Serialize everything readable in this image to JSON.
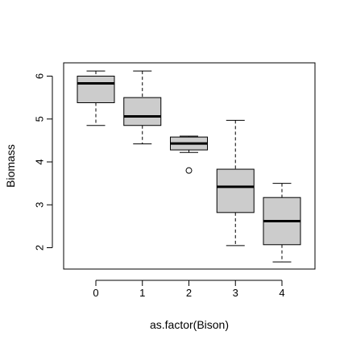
{
  "chart_data": {
    "type": "boxplot",
    "title": "",
    "xlabel": "as.factor(Bison)",
    "ylabel": "Biomass",
    "categories": [
      "0",
      "1",
      "2",
      "3",
      "4"
    ],
    "x_tick_labels": [
      "0",
      "1",
      "2",
      "3",
      "4"
    ],
    "y_ticks": [
      2,
      3,
      4,
      5,
      6
    ],
    "y_tick_labels": [
      "2",
      "3",
      "4",
      "5",
      "6"
    ],
    "ylim": [
      1.55,
      6.3
    ],
    "grid": false,
    "box_fill": "#cccccc",
    "boxes": [
      {
        "category": "0",
        "whisker_low": 4.85,
        "q1": 5.38,
        "median": 5.83,
        "q3": 6.0,
        "whisker_high": 6.12,
        "outliers": []
      },
      {
        "category": "1",
        "whisker_low": 4.42,
        "q1": 4.85,
        "median": 5.06,
        "q3": 5.5,
        "whisker_high": 6.12,
        "outliers": []
      },
      {
        "category": "2",
        "whisker_low": 4.22,
        "q1": 4.28,
        "median": 4.43,
        "q3": 4.58,
        "whisker_high": 4.6,
        "outliers": [
          3.8
        ]
      },
      {
        "category": "3",
        "whisker_low": 2.05,
        "q1": 2.82,
        "median": 3.42,
        "q3": 3.83,
        "whisker_high": 4.97,
        "outliers": []
      },
      {
        "category": "4",
        "whisker_low": 1.67,
        "q1": 2.07,
        "median": 2.62,
        "q3": 3.17,
        "whisker_high": 3.5,
        "outliers": []
      }
    ]
  }
}
